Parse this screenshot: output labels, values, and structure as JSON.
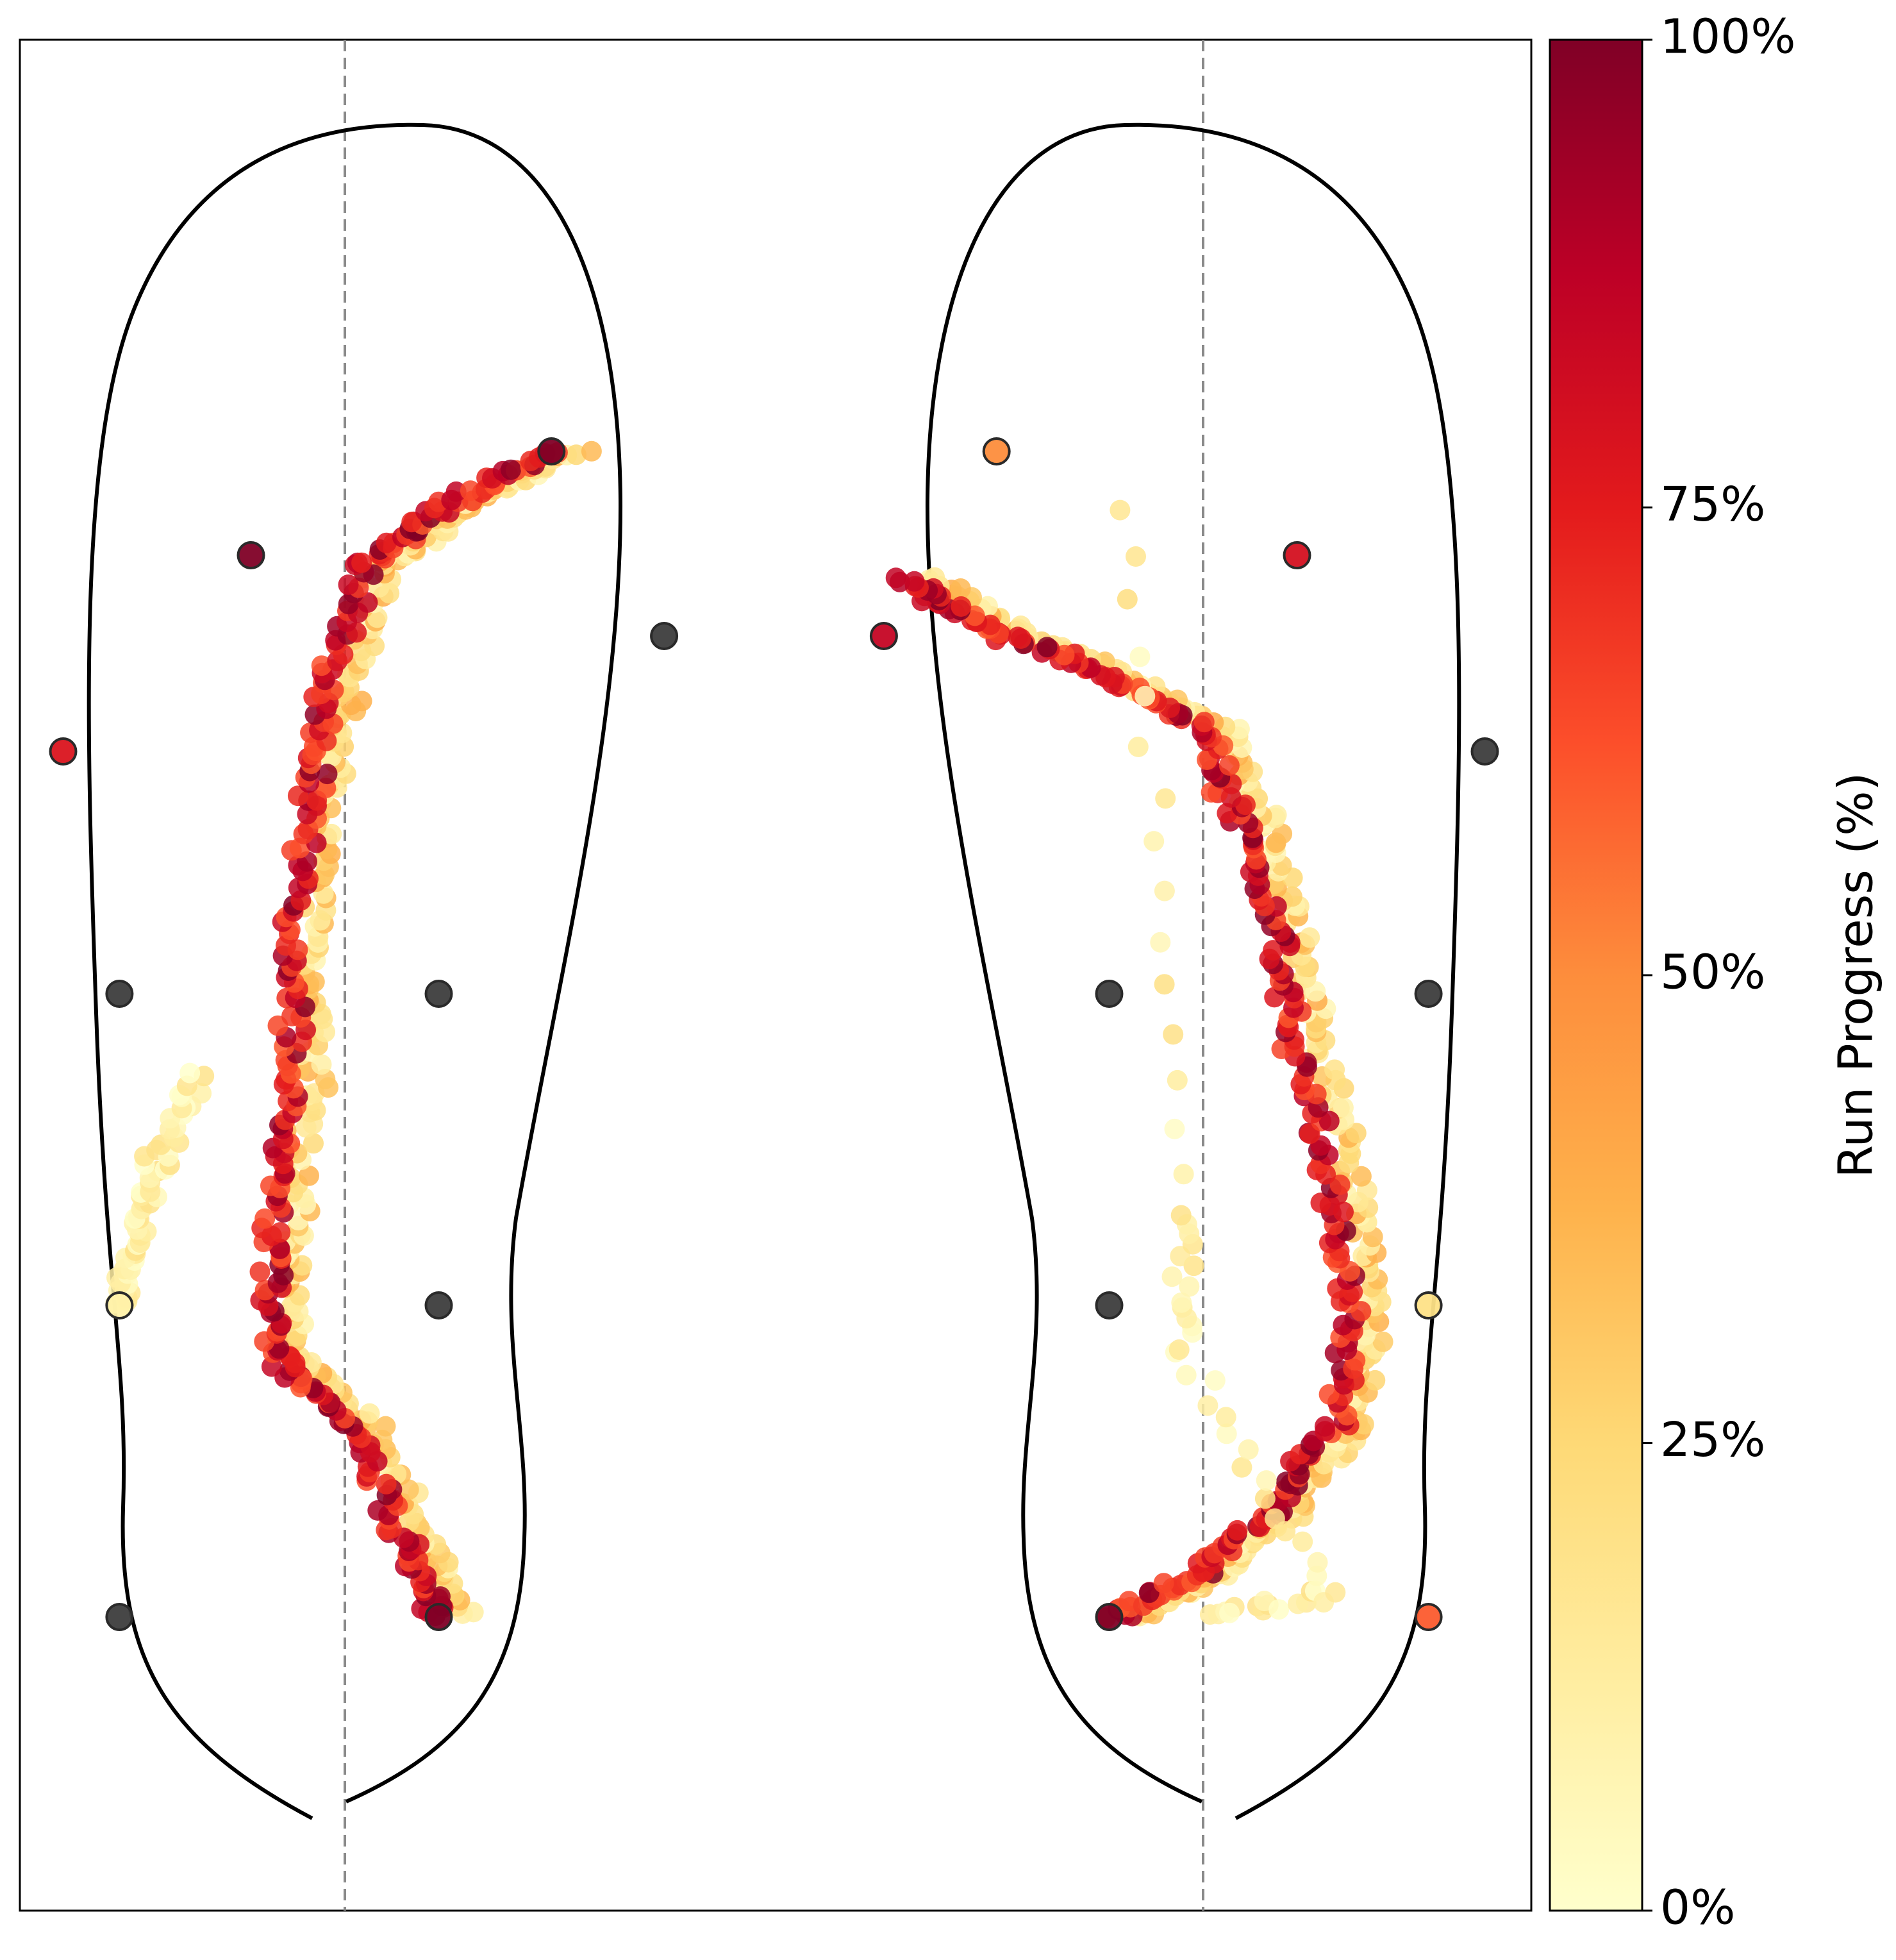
{
  "chart_data": {
    "type": "scatter",
    "title": "",
    "xlabel": "",
    "ylabel": "",
    "grid": false,
    "x_axis_visible": false,
    "y_axis_visible": false,
    "colormap": "YlOrRd",
    "colors": {
      "insole_outline": "#000000",
      "centerline": "#8a8a8a",
      "sensor": "#3d3d3d",
      "cmap_stops": [
        "#ffffcc",
        "#ffeda0",
        "#fed976",
        "#feb24c",
        "#fd8d3c",
        "#fc4e2a",
        "#e31a1c",
        "#bd0026",
        "#800026"
      ]
    },
    "colorbar": {
      "label": "Run Progress (%)",
      "range": [
        0,
        100
      ],
      "ticks": [
        0,
        25,
        50,
        75,
        100
      ],
      "tick_labels": [
        "0%",
        "25%",
        "50%",
        "75%",
        "100%"
      ],
      "placement": "right"
    },
    "feet": [
      {
        "side": "left",
        "centerline": "dashed vertical",
        "sensors": [
          {
            "id": "L1",
            "x": -1.2,
            "y": 0.3,
            "progress": null
          },
          {
            "id": "L2",
            "x": 0.5,
            "y": 0.3,
            "progress": 100
          },
          {
            "id": "L3",
            "x": -1.2,
            "y": 3.0,
            "progress": 10
          },
          {
            "id": "L4",
            "x": 0.5,
            "y": 3.0,
            "progress": null
          },
          {
            "id": "L5",
            "x": -1.2,
            "y": 5.7,
            "progress": null
          },
          {
            "id": "L6",
            "x": 0.5,
            "y": 5.7,
            "progress": null
          },
          {
            "id": "L7",
            "x": -1.5,
            "y": 7.8,
            "progress": 78
          },
          {
            "id": "L8",
            "x": -0.5,
            "y": 9.5,
            "progress": 100
          },
          {
            "id": "L9",
            "x": 1.7,
            "y": 8.8,
            "progress": null
          },
          {
            "id": "L10",
            "x": 1.1,
            "y": 10.4,
            "progress": 100
          }
        ],
        "trajectory": {
          "progress_range": [
            0,
            100
          ],
          "path": [
            [
              0.5,
              0.3
            ],
            [
              0.3,
              1.0
            ],
            [
              0.0,
              2.0
            ],
            [
              -0.4,
              2.6
            ],
            [
              -0.4,
              3.6
            ],
            [
              -0.3,
              4.8
            ],
            [
              -0.3,
              6.0
            ],
            [
              -0.2,
              7.3
            ],
            [
              -0.1,
              8.3
            ],
            [
              0.1,
              9.4
            ],
            [
              0.5,
              9.9
            ],
            [
              1.1,
              10.4
            ]
          ],
          "early_branch": [
            [
              -1.2,
              3.0
            ],
            [
              -1.1,
              3.6
            ],
            [
              -1.0,
              4.2
            ],
            [
              -0.8,
              5.0
            ]
          ]
        }
      },
      {
        "side": "right",
        "centerline": "dashed vertical",
        "sensors": [
          {
            "id": "R1",
            "x": -0.5,
            "y": 0.3,
            "progress": 100
          },
          {
            "id": "R2",
            "x": 1.2,
            "y": 0.3,
            "progress": 60
          },
          {
            "id": "R3",
            "x": -0.5,
            "y": 3.0,
            "progress": null
          },
          {
            "id": "R4",
            "x": 1.2,
            "y": 3.0,
            "progress": 20
          },
          {
            "id": "R5",
            "x": -0.5,
            "y": 5.7,
            "progress": null
          },
          {
            "id": "R6",
            "x": 1.2,
            "y": 5.7,
            "progress": null
          },
          {
            "id": "R7",
            "x": 1.5,
            "y": 7.8,
            "progress": null
          },
          {
            "id": "R8",
            "x": 0.5,
            "y": 9.5,
            "progress": 80
          },
          {
            "id": "R9",
            "x": -1.7,
            "y": 8.8,
            "progress": 85
          },
          {
            "id": "R10",
            "x": -1.1,
            "y": 10.4,
            "progress": 50
          }
        ],
        "trajectory": {
          "progress_range": [
            0,
            100
          ],
          "path": [
            [
              -0.5,
              0.3
            ],
            [
              0.0,
              0.7
            ],
            [
              0.4,
              1.3
            ],
            [
              0.7,
              2.0
            ],
            [
              0.8,
              3.0
            ],
            [
              0.7,
              4.0
            ],
            [
              0.5,
              5.2
            ],
            [
              0.4,
              6.2
            ],
            [
              0.2,
              7.2
            ],
            [
              0.0,
              8.0
            ],
            [
              -0.6,
              8.5
            ],
            [
              -1.2,
              8.9
            ],
            [
              -1.6,
              9.3
            ]
          ],
          "early_branch": [
            [
              0.0,
              0.3
            ],
            [
              0.7,
              0.5
            ],
            [
              -0.1,
              2.5
            ],
            [
              -0.1,
              3.8
            ],
            [
              -0.4,
              9.9
            ]
          ]
        }
      }
    ]
  }
}
